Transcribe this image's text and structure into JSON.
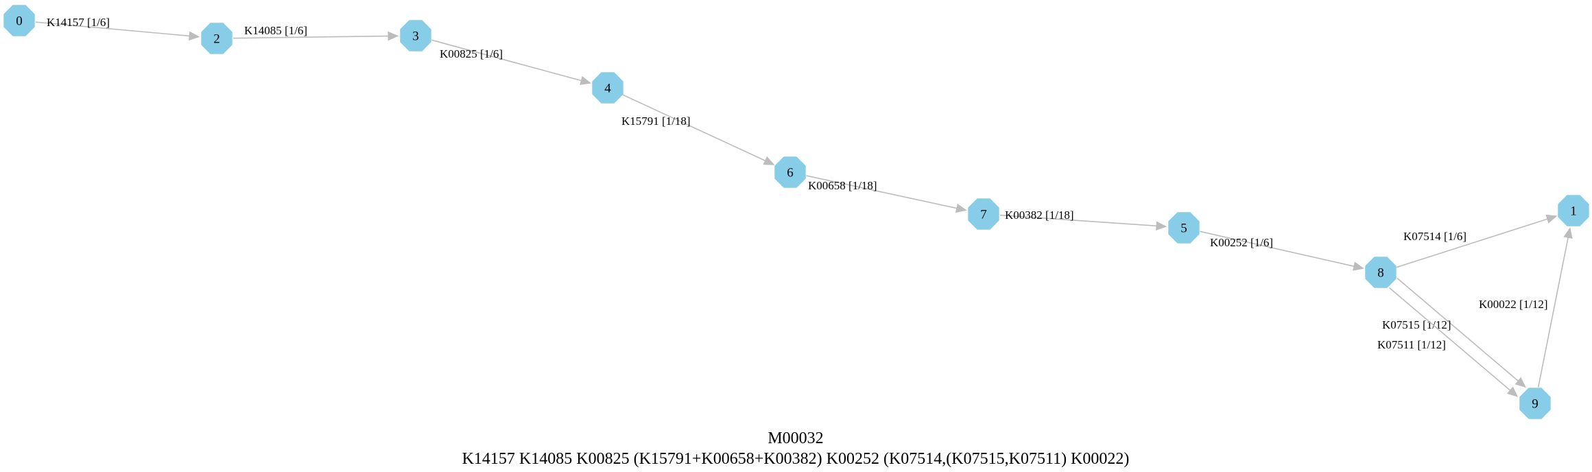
{
  "graph": {
    "title": "M00032",
    "definition": "K14157 K14085 K00825 (K15791+K00658+K00382) K00252 (K07514,(K07515,K07511) K00022)",
    "nodes": [
      {
        "id": "0",
        "label": "0"
      },
      {
        "id": "2",
        "label": "2"
      },
      {
        "id": "3",
        "label": "3"
      },
      {
        "id": "4",
        "label": "4"
      },
      {
        "id": "6",
        "label": "6"
      },
      {
        "id": "7",
        "label": "7"
      },
      {
        "id": "5",
        "label": "5"
      },
      {
        "id": "8",
        "label": "8"
      },
      {
        "id": "1",
        "label": "1"
      },
      {
        "id": "9",
        "label": "9"
      }
    ],
    "edges": [
      {
        "id": "e0",
        "from": "0",
        "to": "2",
        "label": "K14157 [1/6]"
      },
      {
        "id": "e1",
        "from": "2",
        "to": "3",
        "label": "K14085 [1/6]"
      },
      {
        "id": "e2",
        "from": "3",
        "to": "4",
        "label": "K00825 [1/6]"
      },
      {
        "id": "e3",
        "from": "4",
        "to": "6",
        "label": "K15791 [1/18]"
      },
      {
        "id": "e4",
        "from": "6",
        "to": "7",
        "label": "K00658 [1/18]"
      },
      {
        "id": "e5",
        "from": "7",
        "to": "5",
        "label": "K00382 [1/18]"
      },
      {
        "id": "e6",
        "from": "5",
        "to": "8",
        "label": "K00252 [1/6]"
      },
      {
        "id": "e7",
        "from": "8",
        "to": "1",
        "label": "K07514 [1/6]"
      },
      {
        "id": "e8",
        "from": "8",
        "to": "9",
        "label": "K07515 [1/12]"
      },
      {
        "id": "e9",
        "from": "8",
        "to": "9",
        "label": "K07511 [1/12]"
      },
      {
        "id": "e10",
        "from": "9",
        "to": "1",
        "label": "K00022 [1/12]"
      }
    ],
    "colors": {
      "node_fill": "#87cde8",
      "edge": "#bcbcbc",
      "text": "#000000",
      "background": "#ffffff"
    },
    "node_shape": "octagon"
  }
}
